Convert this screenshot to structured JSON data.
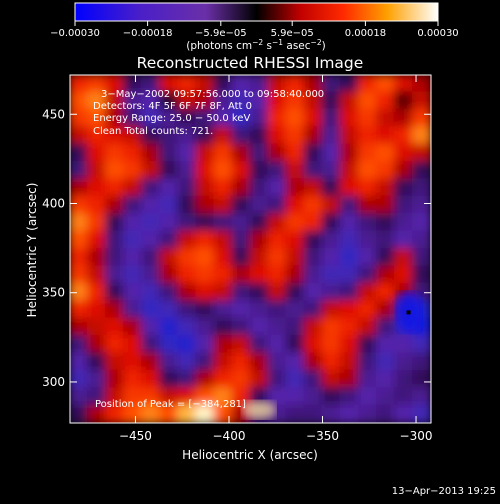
{
  "chart_data": {
    "type": "heatmap",
    "title": "Reconstructed RHESSI Image",
    "xlabel": "Heliocentric X (arcsec)",
    "ylabel": "Heliocentric Y (arcsec)",
    "xlim": [
      -485,
      -292
    ],
    "ylim": [
      277,
      472
    ],
    "xticks": [
      -450,
      -400,
      -350,
      -300
    ],
    "xtick_labels": [
      "−450",
      "−400",
      "−350",
      "−300"
    ],
    "yticks": [
      300,
      350,
      400,
      450
    ],
    "ytick_labels": [
      "300",
      "350",
      "400",
      "450"
    ],
    "colorbar": {
      "range": [
        -0.0003,
        0.0003
      ],
      "ticks": [
        -0.0003,
        -0.00018,
        -5.9e-05,
        5.9e-05,
        0.00018,
        0.0003
      ],
      "tick_labels": [
        "−0.00030",
        "−0.00018",
        "−5.9e−05",
        "5.9e−05",
        "0.00018",
        "0.00030"
      ],
      "unit_base": "(photons cm",
      "unit_exp1": "−2",
      "unit_mid": " s",
      "unit_exp2": "−1",
      "unit_mid2": " asec",
      "unit_exp3": "−2",
      "unit_end": ")"
    },
    "annotations": [
      "3−May−2002 09:57:56.000 to 09:58:40.000",
      "Detectors: 4F 5F 6F 7F 8F, Att 0",
      "Energy Range: 25.0 − 50.0 keV",
      "Clean     Total counts: 721."
    ],
    "peak_label": "Position of Peak = [−384,281]",
    "peak": [
      -384,
      281
    ],
    "blue_peak": [
      -304,
      339
    ],
    "intensity_grid_note": "approximate smoothed intensity field, rows top(y=472) to bottom(y=277), cols left(x=-485) to right(x=-292), normalized -1..1",
    "grid": [
      [
        0.5,
        0.6,
        0.4,
        -0.2,
        -0.3,
        0.4,
        0.5,
        0.3,
        -0.2,
        -0.5,
        -0.4,
        0.3,
        0.5,
        0.2,
        -0.3,
        -0.2,
        0.5,
        0.7,
        0.4,
        0.2
      ],
      [
        0.7,
        0.8,
        0.3,
        -0.4,
        -0.5,
        -0.1,
        0.3,
        0.2,
        -0.4,
        -0.6,
        -0.5,
        0.4,
        0.6,
        0.3,
        -0.2,
        0.3,
        0.7,
        0.5,
        0.1,
        0.3
      ],
      [
        0.6,
        0.7,
        0.2,
        -0.3,
        -0.6,
        -0.4,
        -0.2,
        -0.3,
        -0.5,
        -0.7,
        -0.4,
        0.5,
        0.7,
        0.4,
        -0.3,
        0.4,
        0.6,
        0.3,
        0.2,
        0.6
      ],
      [
        0.3,
        0.5,
        0.4,
        0.3,
        -0.2,
        -0.3,
        -0.4,
        -0.2,
        0.3,
        -0.3,
        -0.2,
        0.4,
        0.6,
        0.2,
        -0.4,
        0.3,
        0.5,
        0.4,
        0.5,
        0.8
      ],
      [
        -0.2,
        0.4,
        0.6,
        0.5,
        0.2,
        -0.3,
        -0.5,
        0.3,
        0.6,
        0.2,
        -0.3,
        0.2,
        0.5,
        -0.2,
        -0.5,
        0.2,
        0.6,
        0.7,
        0.4,
        0.3
      ],
      [
        -0.3,
        0.3,
        0.7,
        0.6,
        0.3,
        -0.2,
        -0.4,
        0.4,
        0.7,
        0.4,
        -0.2,
        -0.3,
        0.3,
        -0.3,
        -0.4,
        0.3,
        0.7,
        0.6,
        0.2,
        -0.2
      ],
      [
        0.2,
        0.4,
        0.5,
        0.3,
        -0.3,
        -0.5,
        -0.3,
        0.3,
        0.5,
        0.2,
        -0.3,
        -0.5,
        0.2,
        0.3,
        -0.2,
        0.4,
        0.5,
        0.3,
        -0.2,
        -0.3
      ],
      [
        0.6,
        0.5,
        0.2,
        -0.3,
        -0.5,
        -0.6,
        -0.2,
        0.2,
        0.3,
        -0.2,
        -0.4,
        -0.3,
        0.4,
        0.6,
        0.3,
        -0.3,
        0.2,
        0.2,
        -0.3,
        -0.4
      ],
      [
        0.8,
        0.6,
        -0.2,
        -0.5,
        -0.6,
        -0.5,
        -0.3,
        -0.2,
        -0.3,
        -0.4,
        -0.2,
        0.3,
        0.6,
        0.5,
        -0.2,
        -0.5,
        -0.3,
        -0.2,
        -0.4,
        -0.5
      ],
      [
        0.7,
        0.4,
        -0.3,
        -0.6,
        -0.5,
        -0.3,
        0.3,
        0.5,
        0.3,
        -0.3,
        0.2,
        0.5,
        0.4,
        -0.2,
        -0.4,
        -0.6,
        -0.4,
        -0.3,
        -0.5,
        -0.4
      ],
      [
        0.5,
        0.2,
        -0.3,
        -0.5,
        -0.3,
        0.3,
        0.6,
        0.7,
        0.4,
        -0.2,
        0.3,
        0.6,
        0.3,
        -0.3,
        -0.5,
        -0.7,
        -0.5,
        -0.2,
        0.3,
        -0.3
      ],
      [
        0.6,
        0.3,
        -0.4,
        -0.6,
        -0.4,
        0.2,
        0.5,
        0.6,
        0.5,
        0.2,
        0.4,
        0.5,
        0.2,
        -0.4,
        -0.6,
        -0.6,
        -0.3,
        0.2,
        0.4,
        -0.2
      ],
      [
        0.8,
        0.5,
        -0.2,
        -0.5,
        -0.6,
        -0.3,
        0.2,
        0.4,
        0.3,
        -0.3,
        -0.2,
        0.3,
        -0.2,
        -0.5,
        -0.4,
        -0.3,
        0.3,
        0.5,
        0.2,
        -0.3
      ],
      [
        0.5,
        0.4,
        0.2,
        -0.4,
        -0.7,
        -0.6,
        -0.3,
        -0.2,
        -0.4,
        -0.5,
        -0.4,
        -0.3,
        -0.4,
        -0.3,
        0.3,
        0.4,
        0.5,
        0.2,
        -0.4,
        -0.8
      ],
      [
        0.2,
        0.3,
        0.4,
        0.2,
        -0.5,
        -0.8,
        -0.6,
        -0.4,
        -0.2,
        -0.3,
        -0.5,
        -0.4,
        -0.3,
        0.3,
        0.6,
        0.5,
        0.3,
        -0.3,
        -0.6,
        -0.9
      ],
      [
        -0.3,
        0.2,
        0.5,
        0.4,
        -0.3,
        -0.7,
        -0.8,
        -0.5,
        0.2,
        0.3,
        -0.3,
        -0.5,
        -0.2,
        0.4,
        0.6,
        0.4,
        -0.2,
        -0.5,
        -0.5,
        -0.6
      ],
      [
        -0.5,
        -0.2,
        0.3,
        0.4,
        0.2,
        -0.4,
        -0.6,
        -0.3,
        0.3,
        0.5,
        0.2,
        -0.4,
        -0.5,
        0.2,
        0.5,
        0.3,
        -0.3,
        -0.6,
        -0.4,
        -0.3
      ],
      [
        -0.6,
        -0.4,
        0.2,
        0.5,
        0.4,
        -0.2,
        -0.3,
        0.2,
        0.5,
        0.6,
        0.3,
        -0.3,
        -0.6,
        -0.3,
        0.3,
        0.2,
        -0.4,
        -0.5,
        -0.3,
        -0.2
      ],
      [
        -0.4,
        -0.3,
        0.3,
        0.6,
        0.6,
        0.3,
        0.4,
        0.7,
        0.8,
        0.5,
        -0.2,
        -0.5,
        -0.5,
        -0.4,
        -0.2,
        -0.3,
        -0.5,
        -0.4,
        -0.3,
        -0.4
      ],
      [
        -0.2,
        0.2,
        0.5,
        0.7,
        0.8,
        0.7,
        0.9,
        1.0,
        0.7,
        0.2,
        -0.3,
        -0.4,
        -0.3,
        -0.3,
        -0.4,
        -0.5,
        -0.4,
        -0.3,
        -0.5,
        -0.6
      ]
    ]
  },
  "footer": {
    "timestamp": "13−Apr−2013 19:25"
  }
}
